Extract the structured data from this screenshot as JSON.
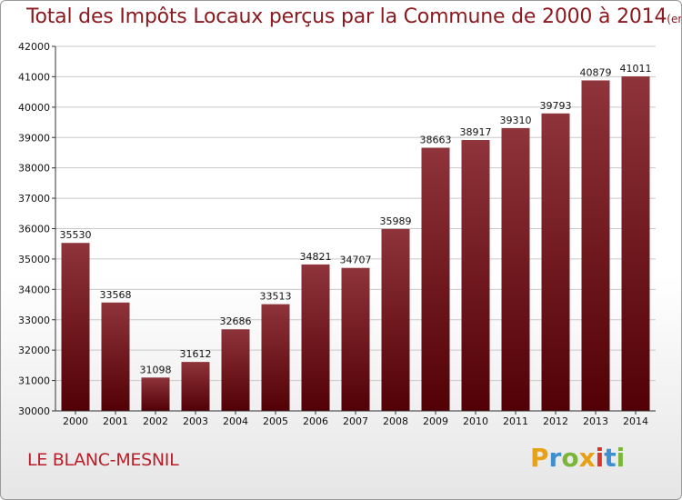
{
  "page": {
    "title": "Total des Impôts Locaux perçus par la Commune de 2000 à 2014",
    "title_unit": "(en milliers d'€)",
    "commune": "LE BLANC-MESNIL",
    "logo_text": "Proxiti"
  },
  "colors": {
    "bar_top": "#8e343a",
    "bar_bottom": "#520006",
    "title": "#8b1a20",
    "commune": "#b81f2a",
    "grid": "#c8c8c8",
    "logo_letters": [
      "#e8a117",
      "#3d8fd0",
      "#7bb63b",
      "#e8a117",
      "#d9362b",
      "#3d8fd0",
      "#7bb63b"
    ]
  },
  "chart_data": {
    "type": "bar",
    "title": "Total des Impôts Locaux perçus par la Commune de 2000 à 2014",
    "unit": "(en milliers d'€)",
    "categories": [
      "2000",
      "2001",
      "2002",
      "2003",
      "2004",
      "2005",
      "2006",
      "2007",
      "2008",
      "2009",
      "2010",
      "2011",
      "2012",
      "2013",
      "2014"
    ],
    "values": [
      35530,
      33568,
      31098,
      31612,
      32686,
      33513,
      34821,
      34707,
      35989,
      38663,
      38917,
      39310,
      39793,
      40879,
      41011
    ],
    "ylim": [
      30000,
      42000
    ],
    "yticks": [
      30000,
      31000,
      32000,
      33000,
      34000,
      35000,
      36000,
      37000,
      38000,
      39000,
      40000,
      41000,
      42000
    ],
    "grid": true,
    "legend": "none"
  }
}
